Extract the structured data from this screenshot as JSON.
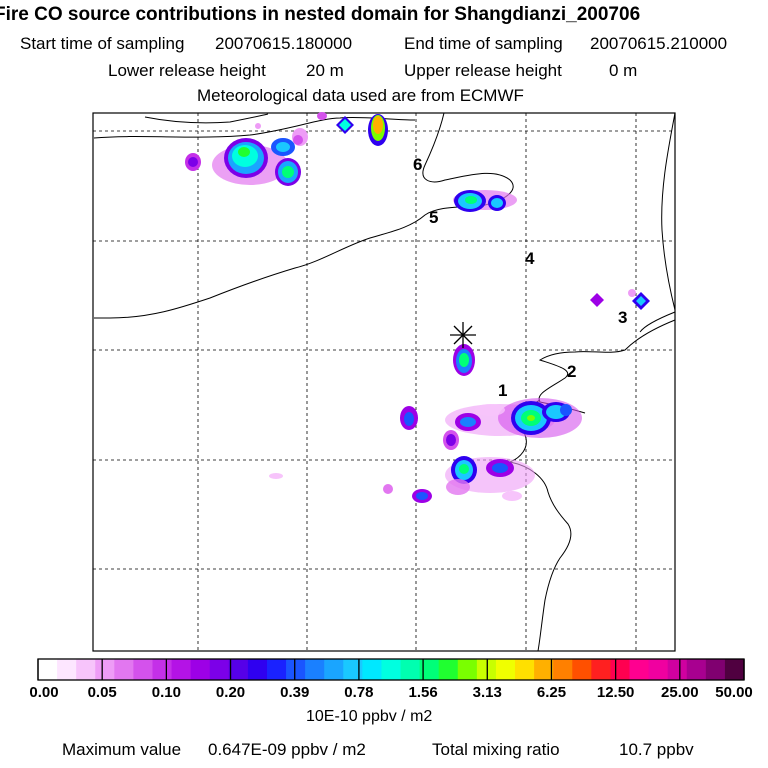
{
  "title": "Fire CO source contributions in nested domain for Shangdianzi_200706",
  "sampling": {
    "start_label": "Start time of sampling",
    "start_value": "20070615.180000",
    "end_label": "End time of sampling",
    "end_value": "20070615.210000"
  },
  "release": {
    "lower_label": "Lower release height",
    "lower_value": "20 m",
    "upper_label": "Upper release height",
    "upper_value": "0 m"
  },
  "met_source": "Meteorological data used are from ECMWF",
  "station_labels": [
    "1",
    "2",
    "3",
    "4",
    "5",
    "6"
  ],
  "colorbar": {
    "tick_labels": [
      "0.00",
      "0.05",
      "0.10",
      "0.20",
      "0.39",
      "0.78",
      "1.56",
      "3.13",
      "6.25",
      "12.50",
      "25.00",
      "50.00"
    ],
    "colors": [
      "#ffffff",
      "#fde6ff",
      "#f7c4fb",
      "#ee9cf6",
      "#e277f0",
      "#d452ec",
      "#c430e8",
      "#b413e6",
      "#9d00e6",
      "#7c00e8",
      "#5600e8",
      "#2f00f0",
      "#1a22ff",
      "#1a55ff",
      "#1a80ff",
      "#1aa5ff",
      "#1ac8ff",
      "#00e8ff",
      "#00ffe0",
      "#00ffb0",
      "#00ff78",
      "#20ff30",
      "#7aff00",
      "#c8ff00",
      "#f0ff00",
      "#ffe000",
      "#ffb000",
      "#ff8000",
      "#ff5000",
      "#ff2020",
      "#ff0050",
      "#ff0090",
      "#f000a0",
      "#d000a0",
      "#a80090",
      "#800070",
      "#500040"
    ],
    "units": "10E-10 ppbv / m2"
  },
  "footer": {
    "max_label": "Maximum value",
    "max_value": "0.647E-09 ppbv / m2",
    "total_label": "Total mixing ratio",
    "total_value": "10.7 ppbv"
  }
}
